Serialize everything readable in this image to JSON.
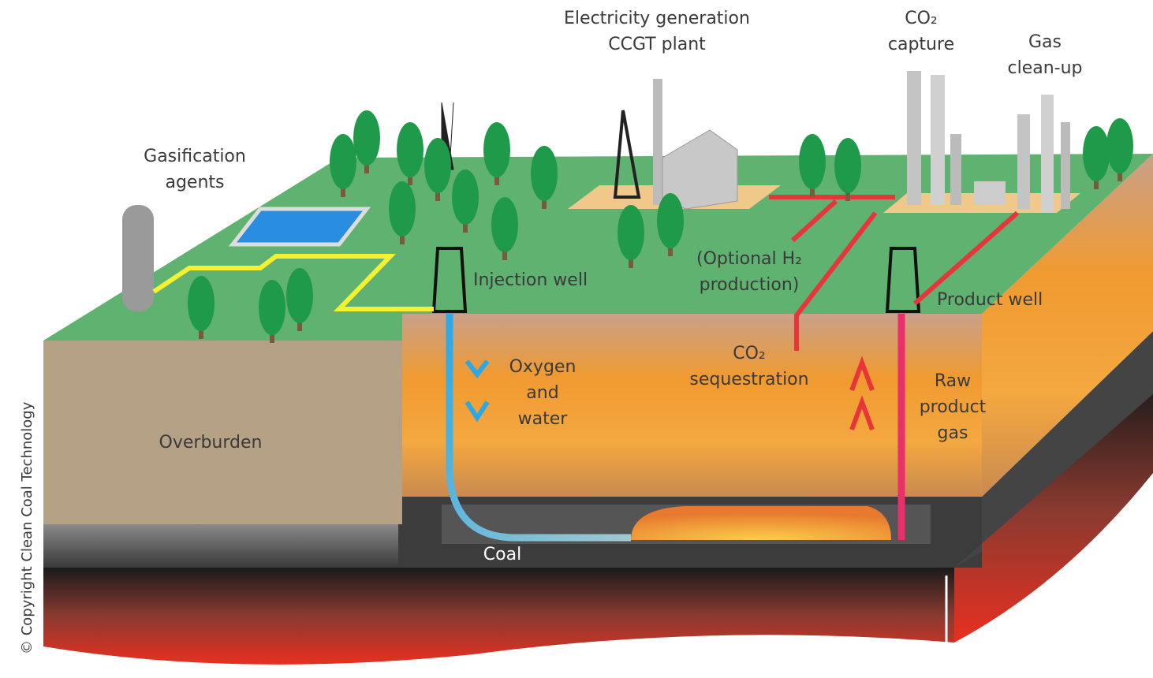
{
  "labels": [
    {
      "lines": [
        "Electricity generation",
        "CCGT plant"
      ]
    },
    {
      "lines": [
        "CO₂",
        "capture"
      ]
    },
    {
      "lines": [
        "Gas",
        "clean-up"
      ]
    },
    {
      "lines": [
        "Gasification",
        "agents"
      ]
    },
    {
      "lines": [
        "Injection well"
      ]
    },
    {
      "lines": [
        "(Optional H₂",
        "production)"
      ]
    },
    {
      "lines": [
        "Product well"
      ]
    },
    {
      "lines": [
        "Oxygen",
        "and",
        "water"
      ]
    },
    {
      "lines": [
        "CO₂",
        "sequestration"
      ]
    },
    {
      "lines": [
        "Raw",
        "product",
        "gas"
      ]
    },
    {
      "lines": [
        "Overburden"
      ]
    },
    {
      "lines": [
        "Coal"
      ]
    }
  ],
  "copyright": "© Copyright Clean Coal Technology"
}
